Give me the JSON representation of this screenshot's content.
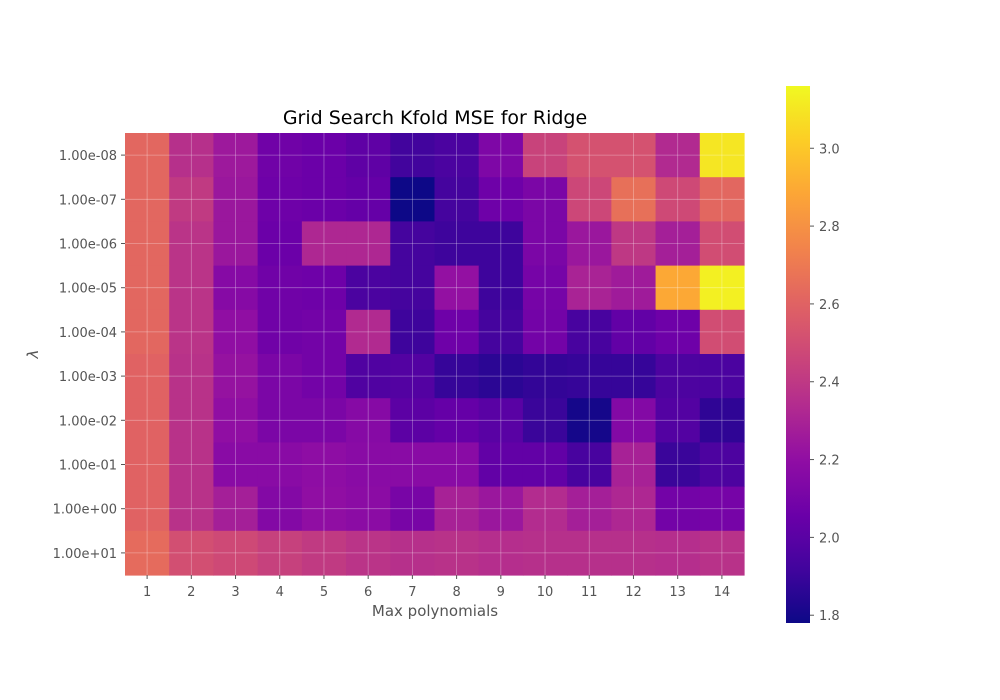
{
  "chart_data": {
    "type": "heatmap",
    "title": "Grid Search Kfold MSE for Ridge",
    "xlabel": "Max polynomials",
    "ylabel": "λ",
    "x_categories": [
      "1",
      "2",
      "3",
      "4",
      "5",
      "6",
      "7",
      "8",
      "9",
      "10",
      "11",
      "12",
      "13",
      "14"
    ],
    "y_categories": [
      "1.00e-08",
      "1.00e-07",
      "1.00e-06",
      "1.00e-05",
      "1.00e-04",
      "1.00e-03",
      "1.00e-02",
      "1.00e-01",
      "1.00e+00",
      "1.00e+01"
    ],
    "values": [
      [
        2.62,
        2.36,
        2.25,
        2.08,
        2.06,
        2.02,
        1.92,
        1.95,
        2.13,
        2.45,
        2.52,
        2.52,
        2.33,
        3.1
      ],
      [
        2.62,
        2.41,
        2.24,
        2.07,
        2.06,
        2.04,
        1.77,
        1.93,
        2.07,
        2.12,
        2.47,
        2.66,
        2.48,
        2.62
      ],
      [
        2.62,
        2.38,
        2.24,
        2.06,
        2.32,
        2.32,
        1.93,
        1.91,
        1.91,
        2.12,
        2.24,
        2.4,
        2.28,
        2.5
      ],
      [
        2.62,
        2.38,
        2.16,
        2.08,
        2.07,
        1.95,
        1.93,
        2.21,
        1.91,
        2.1,
        2.3,
        2.26,
        2.89,
        3.13
      ],
      [
        2.62,
        2.38,
        2.2,
        2.08,
        2.09,
        2.33,
        1.91,
        2.07,
        1.93,
        2.09,
        1.94,
        2.03,
        2.07,
        2.5
      ],
      [
        2.6,
        2.37,
        2.22,
        2.12,
        2.09,
        1.97,
        1.98,
        1.89,
        1.86,
        1.88,
        1.89,
        1.89,
        1.96,
        1.95
      ],
      [
        2.6,
        2.37,
        2.2,
        2.12,
        2.12,
        2.16,
        2.01,
        2.04,
        2.0,
        1.9,
        1.8,
        2.15,
        1.98,
        1.87
      ],
      [
        2.6,
        2.37,
        2.17,
        2.17,
        2.19,
        2.17,
        2.17,
        2.17,
        2.03,
        2.03,
        1.94,
        2.29,
        1.9,
        1.96
      ],
      [
        2.6,
        2.37,
        2.28,
        2.15,
        2.2,
        2.18,
        2.11,
        2.29,
        2.24,
        2.34,
        2.28,
        2.32,
        2.09,
        2.1
      ],
      [
        2.64,
        2.51,
        2.48,
        2.44,
        2.41,
        2.38,
        2.36,
        2.37,
        2.35,
        2.36,
        2.36,
        2.36,
        2.35,
        2.37
      ]
    ],
    "colormap": "plasma",
    "vmin": 1.78,
    "vmax": 3.16,
    "colorbar_ticks": [
      "1.8",
      "2.0",
      "2.2",
      "2.4",
      "2.6",
      "2.8",
      "3.0"
    ],
    "grid": true,
    "grid_color": "#ffffff",
    "tick_color": "#555555"
  }
}
